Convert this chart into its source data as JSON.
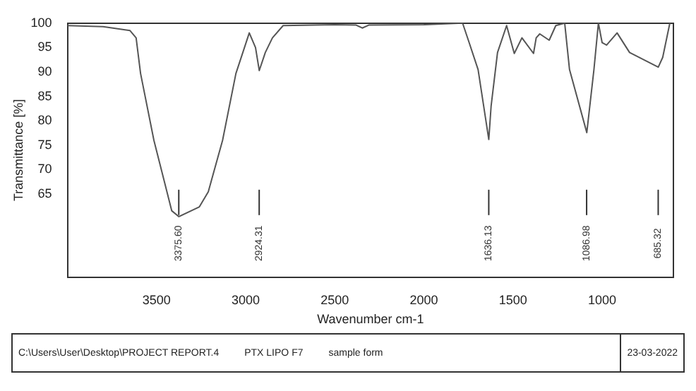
{
  "chart_data": {
    "type": "line",
    "xlabel": "Wavenumber cm-1",
    "ylabel": "Transmittance [%]",
    "x": [
      4000,
      3800,
      3650,
      3615,
      3590,
      3515,
      3415,
      3375,
      3260,
      3210,
      3130,
      3055,
      2980,
      2945,
      2924,
      2890,
      2850,
      2790,
      2500,
      2380,
      2346,
      2310,
      2000,
      1783,
      1746,
      1696,
      1636,
      1623,
      1587,
      1536,
      1493,
      1450,
      1385,
      1370,
      1350,
      1297,
      1260,
      1210,
      1183,
      1086,
      1046,
      1021,
      1000,
      975,
      916,
      846,
      685,
      660,
      620
    ],
    "series": [
      {
        "color": "#555555",
        "values": [
          99.5,
          99.3,
          98.5,
          97,
          89.7,
          76,
          61.6,
          60.4,
          62.4,
          65.5,
          76,
          89.7,
          98,
          95,
          90.3,
          94,
          97,
          99.5,
          99.7,
          99.6,
          99,
          99.6,
          99.7,
          100,
          96,
          90.5,
          76.2,
          83,
          94,
          99.5,
          93.8,
          97,
          93.8,
          97,
          97.8,
          96.5,
          99.5,
          100,
          90.5,
          77.6,
          90.5,
          100,
          96,
          95.5,
          98,
          94,
          91,
          93,
          100
        ]
      }
    ],
    "xlim": [
      4000,
      600
    ],
    "xticks": [
      3500,
      3000,
      2500,
      2000,
      1500,
      1000
    ],
    "ylim": [
      48,
      100
    ],
    "yticks": [
      65,
      70,
      75,
      80,
      85,
      90,
      95,
      100
    ],
    "grid": false,
    "legend": false,
    "marker": "none",
    "line_style": "solid",
    "ref_lines": [
      {
        "axis": "x",
        "value": 3375.6,
        "label": "3375.60"
      },
      {
        "axis": "x",
        "value": 2924.31,
        "label": "2924.31"
      },
      {
        "axis": "x",
        "value": 1636.13,
        "label": "1636.13"
      },
      {
        "axis": "x",
        "value": 1086.98,
        "label": "1086.98"
      },
      {
        "axis": "x",
        "value": 685.32,
        "label": "685.32"
      }
    ],
    "annotations": [
      "C:\\Users\\User\\Desktop\\PROJECT REPORT.4",
      "PTX LIPO F7",
      "sample form",
      "23-03-2022"
    ]
  }
}
